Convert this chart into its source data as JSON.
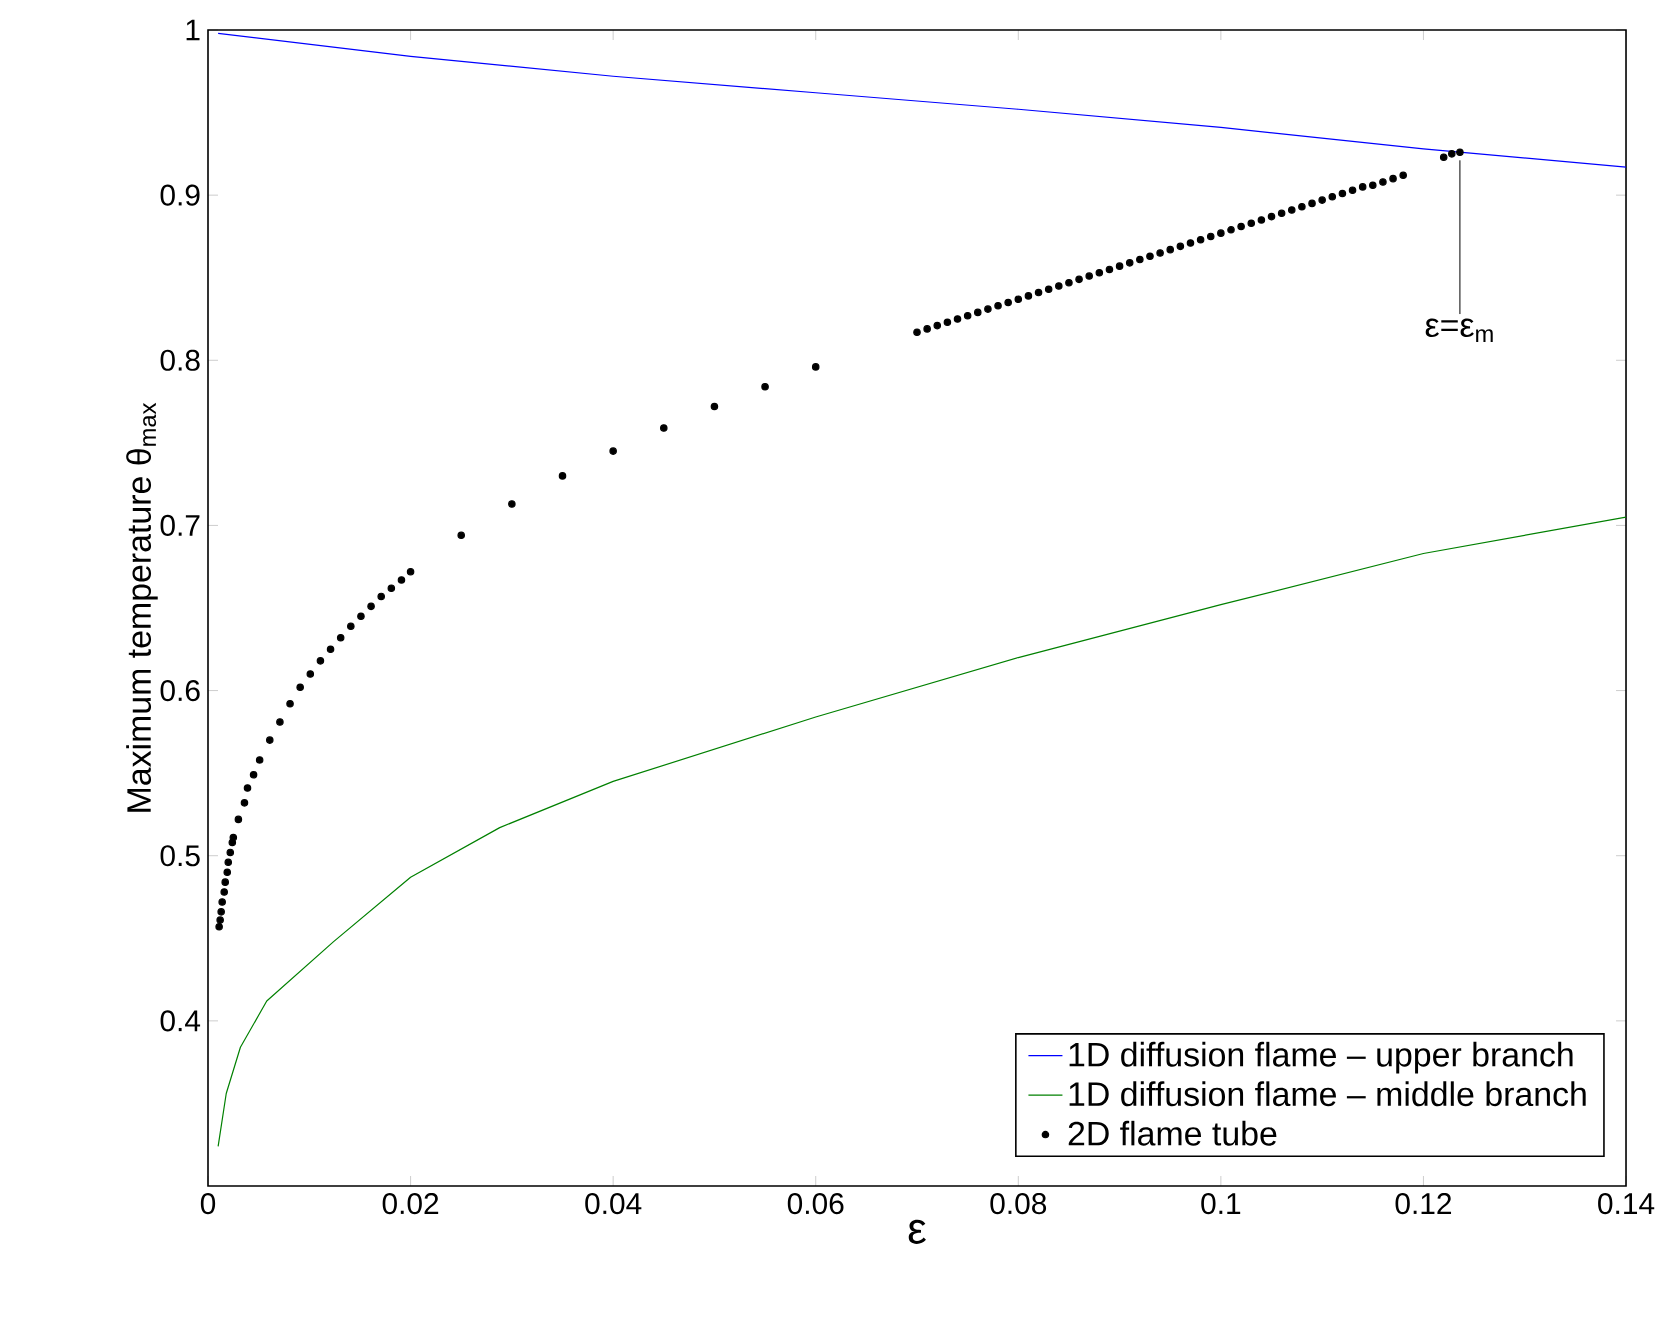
{
  "chart_data": {
    "type": "line",
    "xlabel": "ε",
    "ylabel": "Maximum temperature  θ$_{max}$",
    "xlim": [
      0,
      0.14
    ],
    "ylim": [
      0.3,
      1
    ],
    "xticks": [
      0,
      0.02,
      0.04,
      0.06,
      0.08,
      0.1,
      0.12,
      0.14
    ],
    "yticks": [
      0.4,
      0.5,
      0.6,
      0.7,
      0.8,
      0.9,
      1
    ],
    "legend": "bottom right",
    "annotations": [
      {
        "text": "ε=ε$_{m}$",
        "x": 0.1236,
        "y": 0.926
      }
    ],
    "series": [
      {
        "name": "1D diffusion flame – upper branch",
        "marker": "none",
        "color": "#0000ff",
        "x": [
          0.001,
          0.02,
          0.04,
          0.06,
          0.08,
          0.1,
          0.12,
          0.14
        ],
        "values": [
          0.998,
          0.984,
          0.972,
          0.962,
          0.952,
          0.941,
          0.928,
          0.917
        ]
      },
      {
        "name": "1D diffusion flame – middle branch",
        "marker": "none",
        "color": "#008000",
        "x": [
          0.001,
          0.0018,
          0.0032,
          0.0058,
          0.0124,
          0.02,
          0.0288,
          0.04,
          0.06,
          0.08,
          0.1,
          0.12,
          0.14
        ],
        "values": [
          0.324,
          0.356,
          0.384,
          0.412,
          0.448,
          0.487,
          0.517,
          0.545,
          0.584,
          0.62,
          0.652,
          0.683,
          0.705
        ]
      },
      {
        "name": "2D flame tube",
        "type": "scatter",
        "marker": "circle",
        "color": "#000000",
        "x": [
          0.0011,
          0.0012,
          0.0013,
          0.0014,
          0.0016,
          0.0017,
          0.0019,
          0.002,
          0.0022,
          0.0024,
          0.0025,
          0.003,
          0.0036,
          0.0039,
          0.0045,
          0.0051,
          0.0061,
          0.0071,
          0.0081,
          0.0091,
          0.0101,
          0.0111,
          0.0121,
          0.0131,
          0.0141,
          0.0151,
          0.0161,
          0.0171,
          0.0181,
          0.0191,
          0.02,
          0.025,
          0.03,
          0.035,
          0.04,
          0.045,
          0.05,
          0.055,
          0.06,
          0.07,
          0.071,
          0.072,
          0.073,
          0.074,
          0.075,
          0.076,
          0.077,
          0.078,
          0.079,
          0.08,
          0.081,
          0.082,
          0.083,
          0.084,
          0.085,
          0.086,
          0.087,
          0.088,
          0.089,
          0.09,
          0.091,
          0.092,
          0.093,
          0.094,
          0.095,
          0.096,
          0.097,
          0.098,
          0.099,
          0.1,
          0.101,
          0.102,
          0.103,
          0.104,
          0.105,
          0.106,
          0.107,
          0.108,
          0.109,
          0.11,
          0.111,
          0.112,
          0.113,
          0.114,
          0.115,
          0.116,
          0.117,
          0.118,
          0.122,
          0.1228,
          0.1236
        ],
        "values": [
          0.457,
          0.461,
          0.466,
          0.472,
          0.478,
          0.484,
          0.49,
          0.496,
          0.502,
          0.508,
          0.511,
          0.522,
          0.532,
          0.541,
          0.549,
          0.558,
          0.57,
          0.581,
          0.592,
          0.602,
          0.61,
          0.618,
          0.625,
          0.632,
          0.639,
          0.645,
          0.651,
          0.657,
          0.662,
          0.667,
          0.672,
          0.694,
          0.713,
          0.73,
          0.745,
          0.759,
          0.772,
          0.784,
          0.796,
          0.817,
          0.819,
          0.821,
          0.823,
          0.825,
          0.827,
          0.829,
          0.831,
          0.833,
          0.835,
          0.837,
          0.839,
          0.841,
          0.843,
          0.845,
          0.847,
          0.849,
          0.851,
          0.853,
          0.855,
          0.857,
          0.859,
          0.861,
          0.863,
          0.865,
          0.867,
          0.869,
          0.871,
          0.873,
          0.875,
          0.877,
          0.879,
          0.881,
          0.883,
          0.885,
          0.887,
          0.889,
          0.891,
          0.893,
          0.895,
          0.897,
          0.899,
          0.901,
          0.903,
          0.905,
          0.906,
          0.908,
          0.91,
          0.912,
          0.923,
          0.925,
          0.926
        ]
      }
    ]
  }
}
